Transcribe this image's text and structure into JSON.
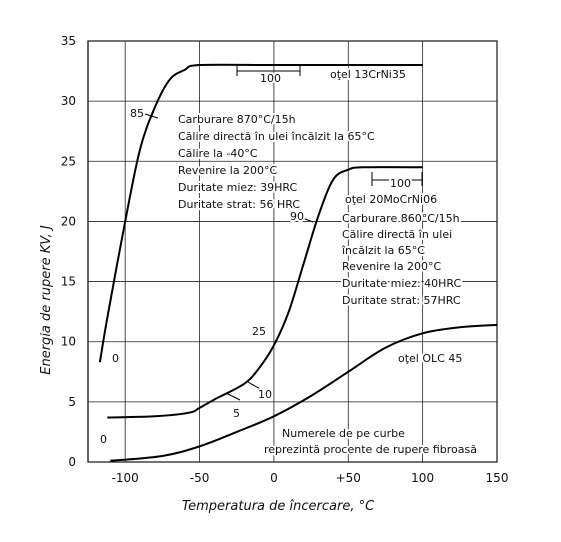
{
  "chart_data": {
    "type": "line",
    "x_label": "Temperatura de încercare, °C",
    "y_label": "Energia de rupere KV, J",
    "xlim": [
      -125,
      150
    ],
    "ylim": [
      0,
      35
    ],
    "xticks": [
      -100,
      -50,
      0,
      {
        "value": 50,
        "label": "+50"
      },
      100,
      150
    ],
    "yticks": [
      0,
      5,
      10,
      15,
      20,
      25,
      30,
      35
    ],
    "grid": true,
    "series": [
      {
        "name": "oţel 13CrNi35",
        "color": "#000000",
        "x": [
          -117,
          -112,
          -100,
          -90,
          -80,
          -70,
          -60,
          -50,
          0,
          50,
          100
        ],
        "values": [
          8.3,
          12,
          20,
          26,
          29.5,
          31.8,
          32.6,
          33,
          33,
          33,
          33
        ]
      },
      {
        "name": "oţel 20MoCrNi06",
        "color": "#000000",
        "x": [
          -112,
          -80,
          -57,
          -50,
          -40,
          -20,
          -10,
          0,
          10,
          20,
          30,
          40,
          50,
          60,
          100
        ],
        "values": [
          3.7,
          3.8,
          4.1,
          4.5,
          5.2,
          6.5,
          7.8,
          9.7,
          12.5,
          16.5,
          20.5,
          23.5,
          24.3,
          24.5,
          24.5
        ]
      },
      {
        "name": "oţel OLC 45",
        "color": "#000000",
        "x": [
          -110,
          -75,
          -50,
          -25,
          0,
          25,
          50,
          75,
          100,
          125,
          150
        ],
        "values": [
          0.1,
          0.5,
          1.3,
          2.5,
          3.8,
          5.5,
          7.5,
          9.5,
          10.7,
          11.2,
          11.4
        ]
      }
    ],
    "annotations": [
      "oţel 13CrNi35",
      "Carburare 870°C/15h",
      "Călire directă în ulei încălzit la 65°C",
      "Călire la -40°C",
      "Revenire la 200°C",
      "Duritate miez: 39HRC",
      "Duritate strat: 56 HRC",
      "oţel 20MoCrNi06",
      "Carburare 860°C/15h",
      "Călire directă în ulei",
      "încălzit la 65°C",
      "Revenire la 200°C",
      "Duritate miez: 40HRC",
      "Duritate strat: 57HRC",
      "oţel OLC 45",
      "Numerele de pe curbe",
      "reprezintă procente de rupere fibroasă",
      "85",
      "0",
      "0",
      "5",
      "10",
      "25",
      "90",
      "100",
      "100"
    ]
  }
}
